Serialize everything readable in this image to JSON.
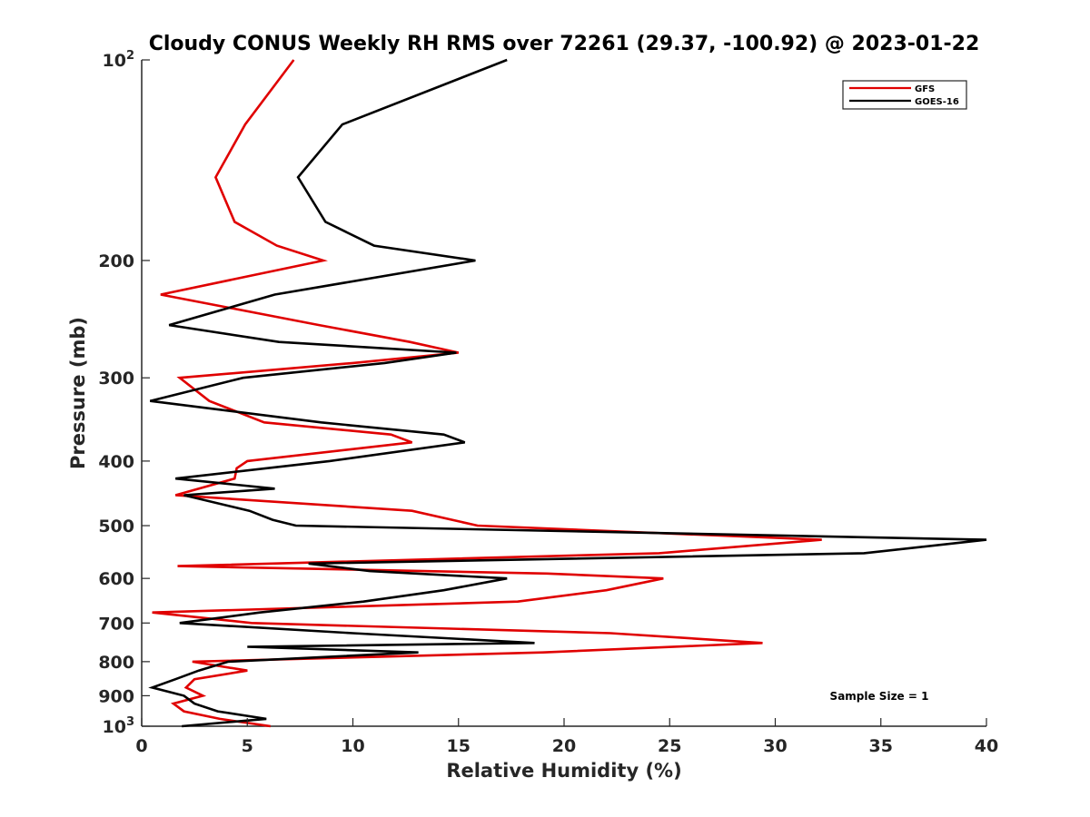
{
  "chart_data": {
    "type": "line",
    "title": "Cloudy CONUS Weekly RH RMS over 72261 (29.37, -100.92) @ 2023-01-22",
    "xlabel": "Relative Humidity (%)",
    "ylabel": "Pressure (mb)",
    "xlim": [
      0,
      40
    ],
    "ylim": [
      100,
      1000
    ],
    "y_scale": "log",
    "y_reversed": true,
    "grid": false,
    "legend_position": "top-right",
    "annotation": "Sample Size = 1",
    "x_ticks": [
      0,
      5,
      10,
      15,
      20,
      25,
      30,
      35,
      40
    ],
    "x_tick_labels": [
      "0",
      "5",
      "10",
      "15",
      "20",
      "25",
      "30",
      "35",
      "40"
    ],
    "y_ticks": [
      {
        "value": 100,
        "base": "10",
        "exp": "2"
      },
      {
        "value": 200,
        "label": "200"
      },
      {
        "value": 300,
        "label": "300"
      },
      {
        "value": 400,
        "label": "400"
      },
      {
        "value": 500,
        "label": "500"
      },
      {
        "value": 600,
        "label": "600"
      },
      {
        "value": 700,
        "label": "700"
      },
      {
        "value": 800,
        "label": "800"
      },
      {
        "value": 900,
        "label": "900"
      },
      {
        "value": 1000,
        "base": "10",
        "exp": "3"
      }
    ],
    "series": [
      {
        "name": "GFS",
        "color": "#e00000",
        "points": [
          {
            "p": 100,
            "rh": 7.2
          },
          {
            "p": 125,
            "rh": 4.9
          },
          {
            "p": 150,
            "rh": 3.5
          },
          {
            "p": 175,
            "rh": 4.4
          },
          {
            "p": 190,
            "rh": 6.4
          },
          {
            "p": 200,
            "rh": 8.6
          },
          {
            "p": 225,
            "rh": 0.9
          },
          {
            "p": 250,
            "rh": 8.4
          },
          {
            "p": 265,
            "rh": 12.7
          },
          {
            "p": 275,
            "rh": 15.0
          },
          {
            "p": 285,
            "rh": 10.0
          },
          {
            "p": 300,
            "rh": 1.8
          },
          {
            "p": 325,
            "rh": 3.2
          },
          {
            "p": 350,
            "rh": 5.8
          },
          {
            "p": 365,
            "rh": 11.8
          },
          {
            "p": 375,
            "rh": 12.8
          },
          {
            "p": 400,
            "rh": 5.0
          },
          {
            "p": 410,
            "rh": 4.5
          },
          {
            "p": 425,
            "rh": 4.4
          },
          {
            "p": 450,
            "rh": 1.6
          },
          {
            "p": 475,
            "rh": 12.8
          },
          {
            "p": 500,
            "rh": 15.9
          },
          {
            "p": 525,
            "rh": 32.2
          },
          {
            "p": 550,
            "rh": 24.5
          },
          {
            "p": 575,
            "rh": 1.7
          },
          {
            "p": 590,
            "rh": 19.2
          },
          {
            "p": 600,
            "rh": 24.7
          },
          {
            "p": 625,
            "rh": 22.0
          },
          {
            "p": 650,
            "rh": 17.8
          },
          {
            "p": 675,
            "rh": 0.5
          },
          {
            "p": 700,
            "rh": 5.2
          },
          {
            "p": 725,
            "rh": 22.2
          },
          {
            "p": 750,
            "rh": 29.4
          },
          {
            "p": 775,
            "rh": 19.0
          },
          {
            "p": 800,
            "rh": 2.4
          },
          {
            "p": 825,
            "rh": 5.0
          },
          {
            "p": 850,
            "rh": 2.5
          },
          {
            "p": 875,
            "rh": 2.1
          },
          {
            "p": 900,
            "rh": 2.9
          },
          {
            "p": 925,
            "rh": 1.5
          },
          {
            "p": 950,
            "rh": 2.0
          },
          {
            "p": 975,
            "rh": 3.7
          },
          {
            "p": 1000,
            "rh": 6.1
          }
        ]
      },
      {
        "name": "GOES-16",
        "color": "#000000",
        "points": [
          {
            "p": 100,
            "rh": 17.3
          },
          {
            "p": 125,
            "rh": 9.5
          },
          {
            "p": 150,
            "rh": 7.4
          },
          {
            "p": 175,
            "rh": 8.7
          },
          {
            "p": 190,
            "rh": 11.0
          },
          {
            "p": 200,
            "rh": 15.8
          },
          {
            "p": 225,
            "rh": 6.3
          },
          {
            "p": 250,
            "rh": 1.3
          },
          {
            "p": 265,
            "rh": 6.5
          },
          {
            "p": 275,
            "rh": 14.9
          },
          {
            "p": 285,
            "rh": 11.5
          },
          {
            "p": 300,
            "rh": 4.8
          },
          {
            "p": 325,
            "rh": 0.4
          },
          {
            "p": 350,
            "rh": 8.5
          },
          {
            "p": 365,
            "rh": 14.3
          },
          {
            "p": 375,
            "rh": 15.3
          },
          {
            "p": 400,
            "rh": 8.9
          },
          {
            "p": 425,
            "rh": 1.6
          },
          {
            "p": 440,
            "rh": 6.3
          },
          {
            "p": 450,
            "rh": 2.0
          },
          {
            "p": 475,
            "rh": 5.1
          },
          {
            "p": 490,
            "rh": 6.2
          },
          {
            "p": 500,
            "rh": 7.3
          },
          {
            "p": 525,
            "rh": 40.0
          },
          {
            "p": 550,
            "rh": 34.2
          },
          {
            "p": 570,
            "rh": 7.9
          },
          {
            "p": 585,
            "rh": 10.8
          },
          {
            "p": 600,
            "rh": 17.3
          },
          {
            "p": 625,
            "rh": 14.3
          },
          {
            "p": 650,
            "rh": 10.5
          },
          {
            "p": 675,
            "rh": 5.6
          },
          {
            "p": 700,
            "rh": 1.8
          },
          {
            "p": 725,
            "rh": 10.0
          },
          {
            "p": 750,
            "rh": 18.6
          },
          {
            "p": 760,
            "rh": 5.0
          },
          {
            "p": 775,
            "rh": 13.1
          },
          {
            "p": 800,
            "rh": 4.1
          },
          {
            "p": 825,
            "rh": 2.7
          },
          {
            "p": 850,
            "rh": 1.6
          },
          {
            "p": 875,
            "rh": 0.5
          },
          {
            "p": 900,
            "rh": 2.0
          },
          {
            "p": 925,
            "rh": 2.5
          },
          {
            "p": 950,
            "rh": 3.6
          },
          {
            "p": 975,
            "rh": 5.9
          },
          {
            "p": 1000,
            "rh": 1.9
          }
        ]
      }
    ]
  }
}
